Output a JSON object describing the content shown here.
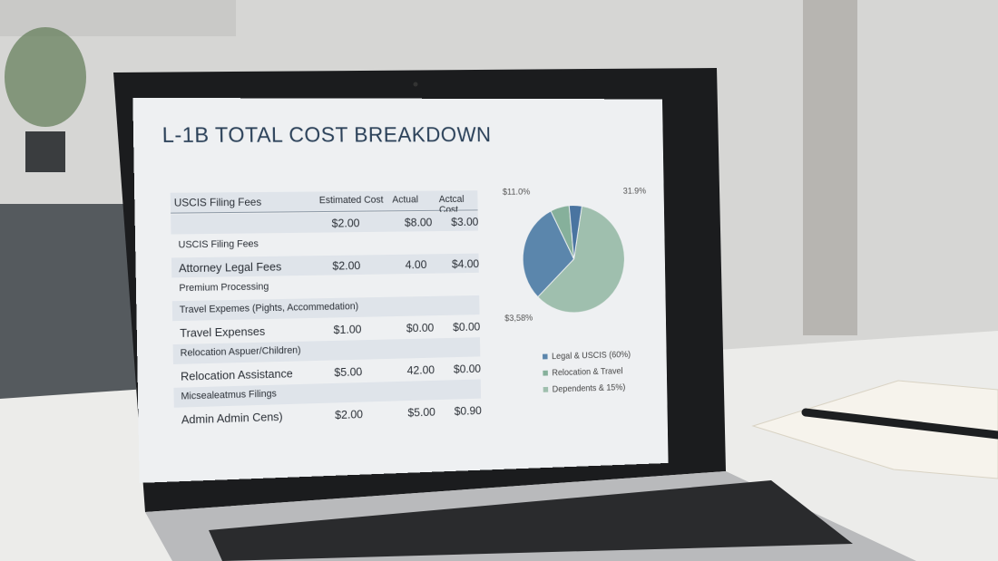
{
  "title": "L-1B TOTAL COST BREAKDOWN",
  "table": {
    "header": [
      "USCIS Filing Fees",
      "Estimated Cost",
      "Actual",
      "Actcal Cost"
    ],
    "rows": [
      {
        "cells": [
          "$2.00",
          "$8.00",
          "$3.00"
        ]
      },
      {
        "label": "USCIS Filing Fees"
      },
      {
        "label": "Attorney Legal Fees",
        "cells": [
          "$2.00",
          "4.00",
          "$4.00"
        ]
      },
      {
        "label": "Premium Processing"
      },
      {
        "label": "Travel Expemes (Pights, Accommedation)"
      },
      {
        "label": "Travel Expenses",
        "cells": [
          "$1.00",
          "$0.00",
          "$0.00"
        ]
      },
      {
        "label": "Relocation Aspuer/Children)"
      },
      {
        "label": "Relocation Assistance",
        "cells": [
          "$5.00",
          "42.00",
          "$0.00"
        ]
      },
      {
        "label": "Micsealeatmus Filings"
      },
      {
        "label": "Admin Admin Cens)",
        "cells": [
          "$2.00",
          "$5.00",
          "$0.90"
        ]
      }
    ]
  },
  "pie": {
    "slices": [
      {
        "value": 60,
        "color": "#9fbfae"
      },
      {
        "value": 30,
        "color": "#5b86ac"
      },
      {
        "value": 6,
        "color": "#86b09b"
      },
      {
        "value": 4,
        "color": "#4a74a0"
      }
    ],
    "callouts": [
      "$11.0%",
      "31.9%",
      "$3,58%"
    ],
    "legend": [
      {
        "label": "Legal & USCIS (60%)",
        "color": "#5b86ac"
      },
      {
        "label": "Relocation & Travel",
        "color": "#86b09b"
      },
      {
        "label": "Dependents & 15%)",
        "color": "#9fbfae"
      }
    ]
  }
}
